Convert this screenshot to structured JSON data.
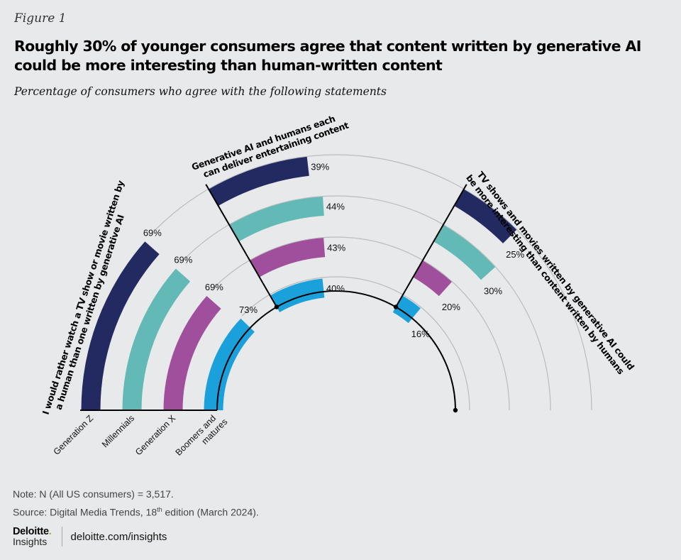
{
  "figure_label": "Figure 1",
  "title": "Roughly 30% of younger consumers agree that content written by generative AI could be more interesting than human-written content",
  "subtitle": "Percentage of consumers who agree with the following statements",
  "note": "Note: N (All US consumers) = 3,517.",
  "source_prefix": "Source: Digital Media Trends, 18",
  "source_sup": "th",
  "source_suffix": " edition (March 2024).",
  "logo_top": "Deloitte",
  "logo_dot": ".",
  "logo_bottom": "Insights",
  "url": "deloitte.com/insights",
  "chart_data": {
    "type": "radial-bar",
    "title": "Roughly 30% of younger consumers agree that content written by generative AI could be more interesting than human-written content",
    "subtitle": "Percentage of consumers who agree with the following statements",
    "unit": "%",
    "categories": [
      "Generation Z",
      "Millennials",
      "Generation X",
      "Boomers and matures"
    ],
    "category_labels": [
      [
        "Generation Z"
      ],
      [
        "Millennials"
      ],
      [
        "Generation X"
      ],
      [
        "Boomers and",
        "matures"
      ]
    ],
    "colors": [
      "#222a61",
      "#62b9b5",
      "#a04f9c",
      "#1aa0db"
    ],
    "statements": [
      {
        "label_lines": [
          "I would rather watch a TV show or movie written by",
          "a human than one written by generative AI"
        ],
        "values": [
          69,
          69,
          69,
          73
        ]
      },
      {
        "label_lines": [
          "Generative AI and humans each",
          "can deliver entertaining content"
        ],
        "values": [
          39,
          44,
          43,
          40
        ]
      },
      {
        "label_lines": [
          "TV shows and movies written by generative AI could",
          "be more interesting than content written by humans"
        ],
        "values": [
          25,
          30,
          20,
          16
        ]
      }
    ],
    "value_range": [
      0,
      100
    ]
  }
}
